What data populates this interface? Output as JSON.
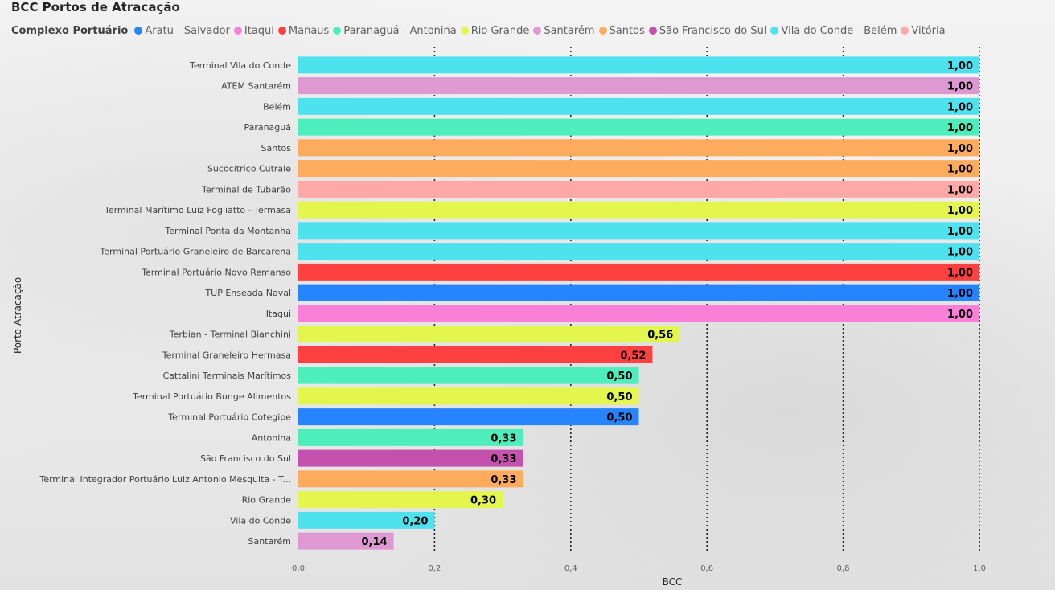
{
  "chart_data": {
    "type": "bar",
    "orientation": "horizontal",
    "title": "BCC Portos de Atracação",
    "xlabel": "BCC",
    "ylabel": "Porto Atracação",
    "xlim": [
      0,
      1
    ],
    "xticks": [
      "0,0",
      "0,2",
      "0,4",
      "0,6",
      "0,8",
      "1,0"
    ],
    "xtick_values": [
      0,
      0.2,
      0.4,
      0.6,
      0.8,
      1.0
    ],
    "grid": "vertical dotted",
    "legend": {
      "title": "Complexo Portuário",
      "placement": "top-left",
      "entries": [
        {
          "name": "Aratu - Salvador",
          "color": "#2684ff"
        },
        {
          "name": "Itaqui",
          "color": "#fa7fd6"
        },
        {
          "name": "Manaus",
          "color": "#ff4040"
        },
        {
          "name": "Paranaguá - Antonina",
          "color": "#4deebb"
        },
        {
          "name": "Rio Grande",
          "color": "#e4f54d"
        },
        {
          "name": "Santarém",
          "color": "#de98d2"
        },
        {
          "name": "Santos",
          "color": "#ffab5e"
        },
        {
          "name": "São Francisco do Sul",
          "color": "#c452ad"
        },
        {
          "name": "Vila do Conde - Belém",
          "color": "#4de2ee"
        },
        {
          "name": "Vitória",
          "color": "#ffa8a8"
        }
      ]
    },
    "bars": [
      {
        "category": "Terminal Vila do Conde",
        "value": 1.0,
        "label": "1,00",
        "complex": "Vila do Conde - Belém"
      },
      {
        "category": "ATEM Santarém",
        "value": 1.0,
        "label": "1,00",
        "complex": "Santarém"
      },
      {
        "category": "Belém",
        "value": 1.0,
        "label": "1,00",
        "complex": "Vila do Conde - Belém"
      },
      {
        "category": "Paranaguá",
        "value": 1.0,
        "label": "1,00",
        "complex": "Paranaguá - Antonina"
      },
      {
        "category": "Santos",
        "value": 1.0,
        "label": "1,00",
        "complex": "Santos"
      },
      {
        "category": "Sucocítrico Cutrale",
        "value": 1.0,
        "label": "1,00",
        "complex": "Santos"
      },
      {
        "category": "Terminal de Tubarão",
        "value": 1.0,
        "label": "1,00",
        "complex": "Vitória"
      },
      {
        "category": "Terminal Marítimo Luiz Fogliatto - Termasa",
        "value": 1.0,
        "label": "1,00",
        "complex": "Rio Grande"
      },
      {
        "category": "Terminal Ponta da Montanha",
        "value": 1.0,
        "label": "1,00",
        "complex": "Vila do Conde - Belém"
      },
      {
        "category": "Terminal Portuário Graneleiro de Barcarena",
        "value": 1.0,
        "label": "1,00",
        "complex": "Vila do Conde - Belém"
      },
      {
        "category": "Terminal Portuário Novo Remanso",
        "value": 1.0,
        "label": "1,00",
        "complex": "Manaus"
      },
      {
        "category": "TUP Enseada Naval",
        "value": 1.0,
        "label": "1,00",
        "complex": "Aratu - Salvador"
      },
      {
        "category": "Itaqui",
        "value": 1.0,
        "label": "1,00",
        "complex": "Itaqui"
      },
      {
        "category": "Terbian - Terminal Bianchini",
        "value": 0.56,
        "label": "0,56",
        "complex": "Rio Grande"
      },
      {
        "category": "Terminal Graneleiro Hermasa",
        "value": 0.52,
        "label": "0,52",
        "complex": "Manaus"
      },
      {
        "category": "Cattalini Terminais Marítimos",
        "value": 0.5,
        "label": "0,50",
        "complex": "Paranaguá - Antonina"
      },
      {
        "category": "Terminal Portuário Bunge Alimentos",
        "value": 0.5,
        "label": "0,50",
        "complex": "Rio Grande"
      },
      {
        "category": "Terminal Portuário Cotegipe",
        "value": 0.5,
        "label": "0,50",
        "complex": "Aratu - Salvador"
      },
      {
        "category": "Antonina",
        "value": 0.33,
        "label": "0,33",
        "complex": "Paranaguá - Antonina"
      },
      {
        "category": "São Francisco do Sul",
        "value": 0.33,
        "label": "0,33",
        "complex": "São Francisco do Sul"
      },
      {
        "category": "Terminal Integrador Portuário Luiz Antonio Mesquita - T...",
        "value": 0.33,
        "label": "0,33",
        "complex": "Santos"
      },
      {
        "category": "Rio Grande",
        "value": 0.3,
        "label": "0,30",
        "complex": "Rio Grande"
      },
      {
        "category": "Vila do Conde",
        "value": 0.2,
        "label": "0,20",
        "complex": "Vila do Conde - Belém"
      },
      {
        "category": "Santarém",
        "value": 0.14,
        "label": "0,14",
        "complex": "Santarém"
      }
    ]
  }
}
